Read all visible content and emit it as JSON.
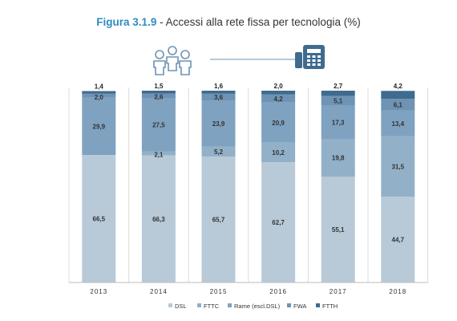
{
  "title": {
    "figure_label": "Figura 3.1.9",
    "separator": " - ",
    "text": "Accessi alla rete fissa per tecnologia (%)"
  },
  "icons": [
    "people-group-icon",
    "fixed-phone-icon"
  ],
  "colors": {
    "DSL": "#b8cad8",
    "FTTC": "#92b0c8",
    "Rame": "#7fa2c0",
    "FWA": "#6e93b4",
    "FTTH": "#3f6b8f"
  },
  "chart_data": {
    "type": "bar",
    "stacked": true,
    "categories": [
      "2013",
      "2014",
      "2015",
      "2016",
      "2017",
      "2018"
    ],
    "ylim": [
      0,
      100
    ],
    "grid": false,
    "legend_position": "bottom",
    "series": [
      {
        "name": "DSL",
        "values": [
          66.5,
          66.3,
          65.7,
          62.7,
          55.1,
          44.7
        ],
        "labels": [
          "66,5",
          "66,3",
          "65,7",
          "62,7",
          "55,1",
          "44,7"
        ]
      },
      {
        "name": "FTTC",
        "values": [
          0,
          2.1,
          5.2,
          10.2,
          19.8,
          31.5
        ],
        "labels": [
          "",
          "2,1",
          "5,2",
          "10,2",
          "19,8",
          "31,5"
        ]
      },
      {
        "name": "Rame (escl.DSL)",
        "values": [
          29.9,
          27.5,
          23.9,
          20.9,
          17.3,
          13.4
        ],
        "labels": [
          "29,9",
          "27,5",
          "23,9",
          "20,9",
          "17,3",
          "13,4"
        ]
      },
      {
        "name": "FWA",
        "values": [
          2.0,
          2.6,
          3.6,
          4.2,
          5.1,
          6.1
        ],
        "labels": [
          "2,0",
          "2,6",
          "3,6",
          "4,2",
          "5,1",
          "6,1"
        ]
      },
      {
        "name": "FTTH",
        "values": [
          1.4,
          1.5,
          1.6,
          2.0,
          2.7,
          4.2
        ],
        "labels": [
          "1,4",
          "1,5",
          "1,6",
          "2,0",
          "2,7",
          "4,2"
        ]
      }
    ]
  }
}
